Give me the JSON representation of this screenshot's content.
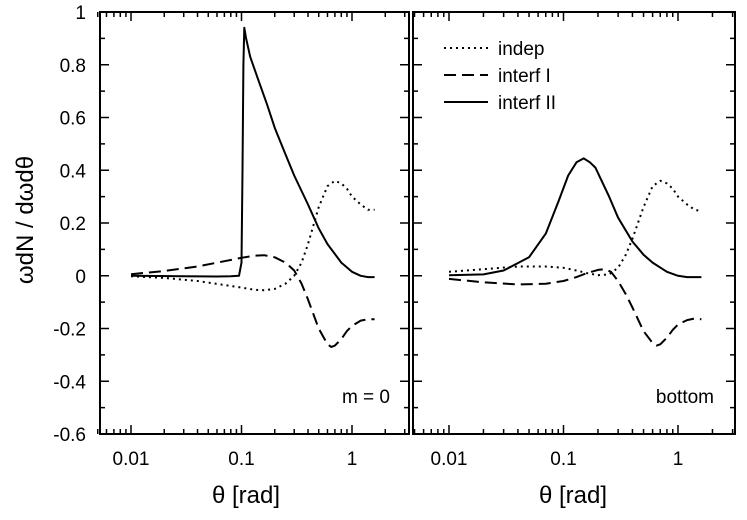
{
  "figure": {
    "y_axis_label": "ωdN / dωdθ",
    "x_axis_label": "θ [rad]"
  },
  "chart_data": [
    {
      "type": "line",
      "panel": "left",
      "annotation": "m = 0",
      "xlabel": "θ [rad]",
      "ylabel": "ωdN / dωdθ",
      "xscale": "log",
      "xlim": [
        0.0045,
        3.5
      ],
      "ylim": [
        -0.6,
        1.0
      ],
      "xticks": [
        0.01,
        0.1,
        1
      ],
      "xtick_labels": [
        "0.01",
        "0.1",
        "1"
      ],
      "yticks": [
        -0.6,
        -0.4,
        -0.2,
        0,
        0.2,
        0.4,
        0.6,
        0.8,
        1
      ],
      "ytick_labels": [
        "-0.6",
        "-0.4",
        "-0.2",
        "0",
        "0.2",
        "0.4",
        "0.6",
        "0.8",
        "1"
      ],
      "series": [
        {
          "name": "indep",
          "style": "dotted",
          "x": [
            0.01,
            0.02,
            0.04,
            0.07,
            0.1,
            0.13,
            0.16,
            0.2,
            0.25,
            0.3,
            0.35,
            0.4,
            0.5,
            0.6,
            0.7,
            0.8,
            0.9,
            1.0,
            1.2,
            1.4,
            1.6
          ],
          "y": [
            -0.002,
            -0.008,
            -0.02,
            -0.035,
            -0.045,
            -0.053,
            -0.055,
            -0.05,
            -0.03,
            0.0,
            0.05,
            0.12,
            0.26,
            0.34,
            0.36,
            0.35,
            0.33,
            0.3,
            0.27,
            0.25,
            0.25
          ]
        },
        {
          "name": "interf I",
          "style": "dashed",
          "x": [
            0.01,
            0.02,
            0.04,
            0.07,
            0.1,
            0.13,
            0.16,
            0.2,
            0.25,
            0.3,
            0.35,
            0.4,
            0.5,
            0.6,
            0.65,
            0.7,
            0.8,
            0.9,
            1.0,
            1.2,
            1.4,
            1.6
          ],
          "y": [
            0.006,
            0.018,
            0.035,
            0.055,
            0.068,
            0.076,
            0.078,
            0.07,
            0.05,
            0.02,
            -0.03,
            -0.09,
            -0.2,
            -0.26,
            -0.27,
            -0.265,
            -0.24,
            -0.21,
            -0.19,
            -0.17,
            -0.165,
            -0.165
          ]
        },
        {
          "name": "interf II",
          "style": "solid",
          "x": [
            0.01,
            0.03,
            0.06,
            0.08,
            0.095,
            0.1,
            0.102,
            0.104,
            0.106,
            0.11,
            0.12,
            0.14,
            0.17,
            0.2,
            0.25,
            0.3,
            0.4,
            0.5,
            0.6,
            0.8,
            1.0,
            1.2,
            1.4,
            1.6
          ],
          "y": [
            0.0,
            -0.002,
            -0.003,
            -0.002,
            0.0,
            0.05,
            0.4,
            0.8,
            0.94,
            0.9,
            0.83,
            0.75,
            0.65,
            0.56,
            0.46,
            0.38,
            0.27,
            0.18,
            0.12,
            0.05,
            0.015,
            0.0,
            -0.005,
            -0.005
          ]
        }
      ]
    },
    {
      "type": "line",
      "panel": "right",
      "annotation": "bottom",
      "xlabel": "θ [rad]",
      "xscale": "log",
      "xlim": [
        0.0045,
        3.5
      ],
      "ylim": [
        -0.6,
        1.0
      ],
      "xticks": [
        0.01,
        0.1,
        1
      ],
      "xtick_labels": [
        "0.01",
        "0.1",
        "1"
      ],
      "legend": {
        "position": "top-left",
        "entries": [
          {
            "label": "indep",
            "style": "dotted"
          },
          {
            "label": "interf I",
            "style": "dashed"
          },
          {
            "label": "interf II",
            "style": "solid"
          }
        ]
      },
      "series": [
        {
          "name": "indep",
          "style": "dotted",
          "x": [
            0.01,
            0.02,
            0.04,
            0.07,
            0.1,
            0.13,
            0.16,
            0.2,
            0.25,
            0.3,
            0.35,
            0.4,
            0.5,
            0.6,
            0.7,
            0.8,
            0.9,
            1.0,
            1.2,
            1.4,
            1.6
          ],
          "y": [
            0.015,
            0.025,
            0.035,
            0.035,
            0.03,
            0.02,
            0.01,
            0.002,
            0.005,
            0.03,
            0.08,
            0.14,
            0.26,
            0.34,
            0.36,
            0.35,
            0.33,
            0.3,
            0.27,
            0.25,
            0.245
          ]
        },
        {
          "name": "interf I",
          "style": "dashed",
          "x": [
            0.01,
            0.02,
            0.04,
            0.07,
            0.1,
            0.13,
            0.16,
            0.2,
            0.23,
            0.26,
            0.3,
            0.35,
            0.4,
            0.5,
            0.6,
            0.65,
            0.7,
            0.8,
            0.9,
            1.0,
            1.2,
            1.4,
            1.6
          ],
          "y": [
            -0.012,
            -0.025,
            -0.033,
            -0.03,
            -0.02,
            -0.005,
            0.01,
            0.022,
            0.025,
            0.015,
            -0.02,
            -0.07,
            -0.12,
            -0.21,
            -0.255,
            -0.265,
            -0.26,
            -0.235,
            -0.205,
            -0.185,
            -0.168,
            -0.162,
            -0.165
          ]
        },
        {
          "name": "interf II",
          "style": "solid",
          "x": [
            0.01,
            0.02,
            0.03,
            0.05,
            0.07,
            0.09,
            0.11,
            0.13,
            0.15,
            0.17,
            0.19,
            0.21,
            0.25,
            0.3,
            0.4,
            0.5,
            0.6,
            0.8,
            1.0,
            1.2,
            1.4,
            1.6
          ],
          "y": [
            0.002,
            0.005,
            0.02,
            0.07,
            0.16,
            0.28,
            0.38,
            0.43,
            0.445,
            0.43,
            0.41,
            0.37,
            0.3,
            0.22,
            0.13,
            0.08,
            0.05,
            0.015,
            0.0,
            -0.005,
            -0.005,
            -0.005
          ]
        }
      ]
    }
  ]
}
